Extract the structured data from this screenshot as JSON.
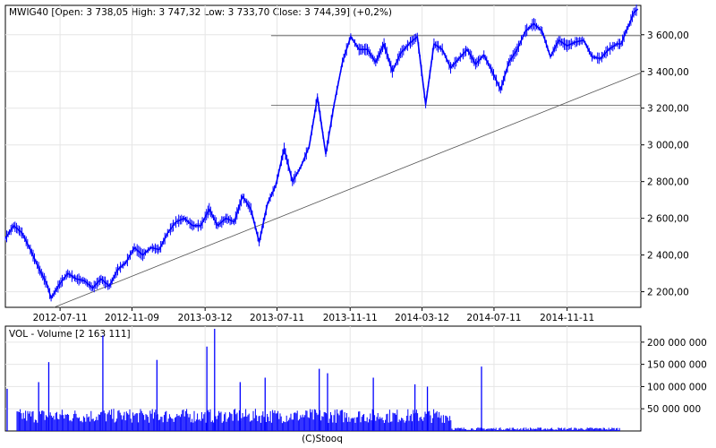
{
  "chart_data": [
    {
      "type": "line",
      "header": "MWIG40 [Open: 3 738,05  High: 3 747,32  Low: 3 733,70  Close: 3 744,39] (+0,2%)",
      "x_tick_labels": [
        "2012-07-11",
        "2012-11-09",
        "2013-03-12",
        "2013-07-11",
        "2013-11-11",
        "2014-03-12",
        "2014-07-11",
        "2014-11-11"
      ],
      "y_tick_labels": [
        "2 200,00",
        "2 400,00",
        "2 600,00",
        "2 800,00",
        "3 000,00",
        "3 200,00",
        "3 400,00",
        "3 600,00"
      ],
      "y_ticks": [
        2200,
        2400,
        2600,
        2800,
        3000,
        3200,
        3400,
        3600
      ],
      "ylim": [
        2115,
        3760
      ],
      "xlim": [
        "2012-04-10",
        "2015-03-15"
      ],
      "series_color": "#0000ff",
      "series": [
        {
          "x": [
            "2012-04-10",
            "2012-04-24",
            "2012-05-08",
            "2012-05-22",
            "2012-06-05",
            "2012-06-19",
            "2012-06-26",
            "2012-07-10",
            "2012-07-24",
            "2012-08-07",
            "2012-08-21",
            "2012-09-04",
            "2012-09-18",
            "2012-10-02",
            "2012-10-16",
            "2012-10-30",
            "2012-11-13",
            "2012-11-27",
            "2012-12-11",
            "2012-12-25",
            "2013-01-08",
            "2013-01-22",
            "2013-02-05",
            "2013-02-19",
            "2013-03-05",
            "2013-03-19",
            "2013-04-02",
            "2013-04-16",
            "2013-04-30",
            "2013-05-14",
            "2013-05-28",
            "2013-06-11",
            "2013-06-25",
            "2013-07-09",
            "2013-07-23",
            "2013-08-06",
            "2013-08-20",
            "2013-09-03",
            "2013-09-17",
            "2013-10-01",
            "2013-10-15",
            "2013-10-29",
            "2013-11-12",
            "2013-11-26",
            "2013-12-10",
            "2013-12-24",
            "2014-01-07",
            "2014-01-21",
            "2014-02-04",
            "2014-02-18",
            "2014-03-04",
            "2014-03-18",
            "2014-04-01",
            "2014-04-15",
            "2014-04-29",
            "2014-05-13",
            "2014-05-27",
            "2014-06-10",
            "2014-06-24",
            "2014-07-08",
            "2014-07-22",
            "2014-08-05",
            "2014-08-19",
            "2014-09-02",
            "2014-09-16",
            "2014-09-30",
            "2014-10-14",
            "2014-10-28",
            "2014-11-11",
            "2014-11-25",
            "2014-12-09",
            "2014-12-23",
            "2015-01-06",
            "2015-01-20",
            "2015-02-03",
            "2015-02-10",
            "2015-02-17",
            "2015-02-24",
            "2015-03-03",
            "2015-03-10"
          ],
          "values": [
            2490,
            2560,
            2520,
            2430,
            2330,
            2240,
            2165,
            2240,
            2300,
            2270,
            2260,
            2220,
            2270,
            2230,
            2320,
            2360,
            2440,
            2400,
            2440,
            2430,
            2520,
            2580,
            2600,
            2560,
            2560,
            2650,
            2560,
            2600,
            2580,
            2720,
            2650,
            2470,
            2680,
            2780,
            2980,
            2800,
            2880,
            2990,
            3260,
            2950,
            3220,
            3450,
            3590,
            3520,
            3520,
            3450,
            3550,
            3400,
            3500,
            3550,
            3590,
            3220,
            3550,
            3520,
            3420,
            3470,
            3520,
            3440,
            3490,
            3400,
            3300,
            3450,
            3520,
            3620,
            3660,
            3620,
            3480,
            3570,
            3540,
            3560,
            3570,
            3480,
            3470,
            3520,
            3550,
            3550,
            3610,
            3660,
            3720,
            3740
          ]
        }
      ],
      "annotation_lines": [
        {
          "type": "horizontal",
          "y": 3595,
          "x_from": "2013-07-01",
          "x_to": "2015-03-25"
        },
        {
          "type": "horizontal",
          "y": 3215,
          "x_from": "2013-07-01",
          "x_to": "2015-03-25"
        },
        {
          "type": "trend",
          "x1": "2012-07-01",
          "y1": 2115,
          "x2": "2015-03-25",
          "y2": 3405
        }
      ]
    },
    {
      "type": "bar",
      "label": "VOL - Volume [2 163 111]",
      "y_tick_labels": [
        "50 000 000",
        "100 000 000",
        "150 000 000",
        "200 000 000"
      ],
      "y_ticks": [
        50000000,
        100000000,
        150000000,
        200000000
      ],
      "ylim": [
        0,
        236000000
      ],
      "series_color": "#0000ff",
      "spikes": [
        {
          "x": "2012-04-13",
          "value": 95000000
        },
        {
          "x": "2012-06-05",
          "value": 110000000
        },
        {
          "x": "2012-06-22",
          "value": 155000000
        },
        {
          "x": "2012-09-21",
          "value": 215000000
        },
        {
          "x": "2012-12-21",
          "value": 160000000
        },
        {
          "x": "2013-03-15",
          "value": 190000000
        },
        {
          "x": "2013-03-28",
          "value": 230000000
        },
        {
          "x": "2013-05-10",
          "value": 110000000
        },
        {
          "x": "2013-06-21",
          "value": 120000000
        },
        {
          "x": "2013-09-20",
          "value": 140000000
        },
        {
          "x": "2013-10-04",
          "value": 130000000
        },
        {
          "x": "2013-12-20",
          "value": 120000000
        },
        {
          "x": "2014-02-28",
          "value": 105000000
        },
        {
          "x": "2014-03-21",
          "value": 100000000
        },
        {
          "x": "2014-06-20",
          "value": 145000000
        }
      ]
    }
  ],
  "footer": "(C)Stooq"
}
